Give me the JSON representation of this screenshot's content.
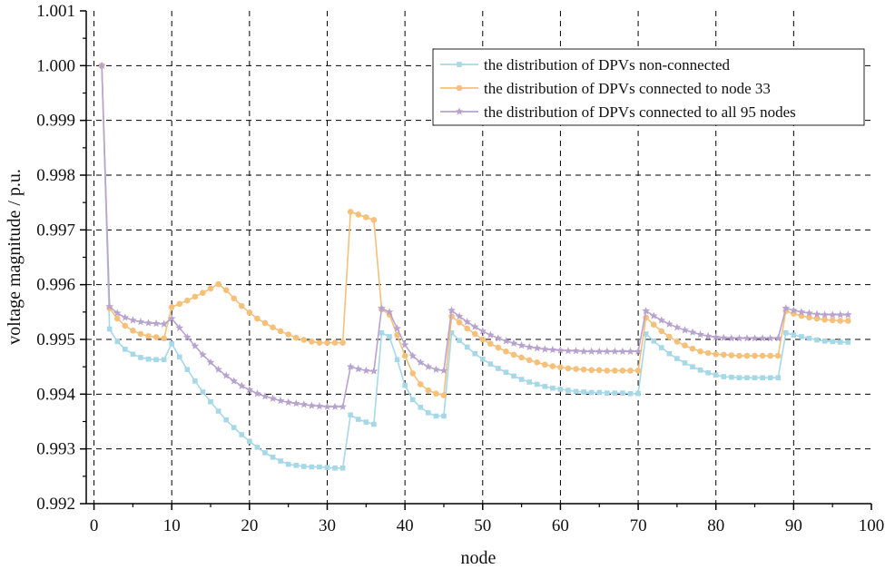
{
  "chart_data": {
    "type": "line",
    "title": "",
    "xlabel": "node",
    "ylabel": "voltage magnitude / p.u.",
    "xlim": [
      -1,
      100
    ],
    "ylim": [
      0.992,
      1.001
    ],
    "xticks": [
      0,
      10,
      20,
      30,
      40,
      50,
      60,
      70,
      80,
      90,
      100
    ],
    "yticks": [
      0.992,
      0.993,
      0.994,
      0.995,
      0.996,
      0.997,
      0.998,
      0.999,
      1.0,
      1.001
    ],
    "xtick_labels": [
      "0",
      "10",
      "20",
      "30",
      "40",
      "50",
      "60",
      "70",
      "80",
      "90",
      "100"
    ],
    "ytick_labels": [
      "0.992",
      "0.993",
      "0.994",
      "0.995",
      "0.996",
      "0.997",
      "0.998",
      "0.999",
      "1.000",
      "1.001"
    ],
    "grid": true,
    "legend_position": "top-right",
    "x": [
      1,
      2,
      3,
      4,
      5,
      6,
      7,
      8,
      9,
      10,
      11,
      12,
      13,
      14,
      15,
      16,
      17,
      18,
      19,
      20,
      21,
      22,
      23,
      24,
      25,
      26,
      27,
      28,
      29,
      30,
      31,
      32,
      33,
      34,
      35,
      36,
      37,
      38,
      39,
      40,
      41,
      42,
      43,
      44,
      45,
      46,
      47,
      48,
      49,
      50,
      51,
      52,
      53,
      54,
      55,
      56,
      57,
      58,
      59,
      60,
      61,
      62,
      63,
      64,
      65,
      66,
      67,
      68,
      69,
      70,
      71,
      72,
      73,
      74,
      75,
      76,
      77,
      78,
      79,
      80,
      81,
      82,
      83,
      84,
      85,
      86,
      87,
      88,
      89,
      90,
      91,
      92,
      93,
      94,
      95,
      96,
      97
    ],
    "series": [
      {
        "name": "the distribution of DPVs non-connected",
        "color": "#a6d8e7",
        "marker": "square",
        "values": [
          1.0,
          0.99519,
          0.99496,
          0.99482,
          0.99473,
          0.99467,
          0.99464,
          0.99463,
          0.99463,
          0.99492,
          0.99468,
          0.99445,
          0.99424,
          0.99404,
          0.99386,
          0.99369,
          0.99353,
          0.99339,
          0.99326,
          0.99314,
          0.99303,
          0.99293,
          0.99285,
          0.99278,
          0.99272,
          0.9927,
          0.99268,
          0.99267,
          0.99267,
          0.99266,
          0.99265,
          0.99265,
          0.99362,
          0.99354,
          0.99349,
          0.99345,
          0.99512,
          0.99505,
          0.99463,
          0.99416,
          0.9939,
          0.99376,
          0.99366,
          0.9936,
          0.9936,
          0.99512,
          0.99498,
          0.99486,
          0.99474,
          0.99464,
          0.99455,
          0.99447,
          0.9944,
          0.99433,
          0.99427,
          0.99422,
          0.99418,
          0.99414,
          0.99411,
          0.99409,
          0.99407,
          0.99405,
          0.99404,
          0.99403,
          0.99403,
          0.99402,
          0.99402,
          0.99402,
          0.99401,
          0.99401,
          0.9951,
          0.99497,
          0.99485,
          0.99474,
          0.99465,
          0.99457,
          0.9945,
          0.99444,
          0.99439,
          0.99435,
          0.99432,
          0.99431,
          0.9943,
          0.9943,
          0.9943,
          0.9943,
          0.9943,
          0.9943,
          0.99512,
          0.99508,
          0.99505,
          0.99502,
          0.99499,
          0.99497,
          0.99496,
          0.99495,
          0.99495
        ]
      },
      {
        "name": "the distribution of DPVs connected to node 33",
        "color": "#f5c07a",
        "marker": "circle",
        "values": [
          1.0,
          0.99557,
          0.99538,
          0.99525,
          0.99516,
          0.9951,
          0.99506,
          0.99504,
          0.99502,
          0.99559,
          0.99565,
          0.99571,
          0.99578,
          0.99585,
          0.99593,
          0.99601,
          0.9959,
          0.99575,
          0.99561,
          0.99549,
          0.99538,
          0.9953,
          0.99522,
          0.99515,
          0.99509,
          0.99503,
          0.99499,
          0.99496,
          0.99494,
          0.99494,
          0.99494,
          0.99494,
          0.99733,
          0.99728,
          0.99723,
          0.99718,
          0.99555,
          0.99545,
          0.99508,
          0.9947,
          0.99438,
          0.99418,
          0.99407,
          0.99401,
          0.99398,
          0.99542,
          0.99531,
          0.9952,
          0.9951,
          0.995,
          0.99492,
          0.99485,
          0.99478,
          0.99472,
          0.99467,
          0.99462,
          0.99458,
          0.99454,
          0.99451,
          0.99449,
          0.99447,
          0.99446,
          0.99445,
          0.99444,
          0.99444,
          0.99443,
          0.99443,
          0.99443,
          0.99443,
          0.99443,
          0.9954,
          0.99527,
          0.99515,
          0.99505,
          0.99496,
          0.99489,
          0.99483,
          0.99478,
          0.99475,
          0.99473,
          0.99472,
          0.99471,
          0.9947,
          0.9947,
          0.9947,
          0.9947,
          0.9947,
          0.9947,
          0.99552,
          0.99547,
          0.99543,
          0.9954,
          0.99538,
          0.99536,
          0.99535,
          0.99534,
          0.99534
        ]
      },
      {
        "name": "the distribution of DPVs connected to all 95 nodes",
        "color": "#b8a3cf",
        "marker": "star",
        "values": [
          1.0,
          0.9956,
          0.99548,
          0.9954,
          0.99535,
          0.99532,
          0.9953,
          0.99529,
          0.99528,
          0.99538,
          0.99521,
          0.99504,
          0.99488,
          0.99472,
          0.99458,
          0.99445,
          0.99434,
          0.99424,
          0.99415,
          0.99408,
          0.99401,
          0.99396,
          0.99392,
          0.99388,
          0.99385,
          0.99383,
          0.99381,
          0.99379,
          0.99378,
          0.99377,
          0.99377,
          0.99377,
          0.9945,
          0.99446,
          0.99443,
          0.99442,
          0.99557,
          0.9955,
          0.9952,
          0.9949,
          0.9947,
          0.99458,
          0.9945,
          0.99445,
          0.99443,
          0.99553,
          0.99542,
          0.99532,
          0.99523,
          0.99515,
          0.99508,
          0.99502,
          0.99497,
          0.99493,
          0.99489,
          0.99486,
          0.99484,
          0.99482,
          0.99481,
          0.9948,
          0.99479,
          0.99479,
          0.99478,
          0.99478,
          0.99478,
          0.99478,
          0.99478,
          0.99478,
          0.99478,
          0.99478,
          0.99552,
          0.99543,
          0.99535,
          0.99528,
          0.99522,
          0.99517,
          0.99513,
          0.99509,
          0.99506,
          0.99504,
          0.99503,
          0.99502,
          0.99502,
          0.99502,
          0.99502,
          0.99502,
          0.99502,
          0.99502,
          0.99557,
          0.99553,
          0.9955,
          0.99548,
          0.99546,
          0.99545,
          0.99545,
          0.99545,
          0.99545
        ]
      }
    ]
  }
}
